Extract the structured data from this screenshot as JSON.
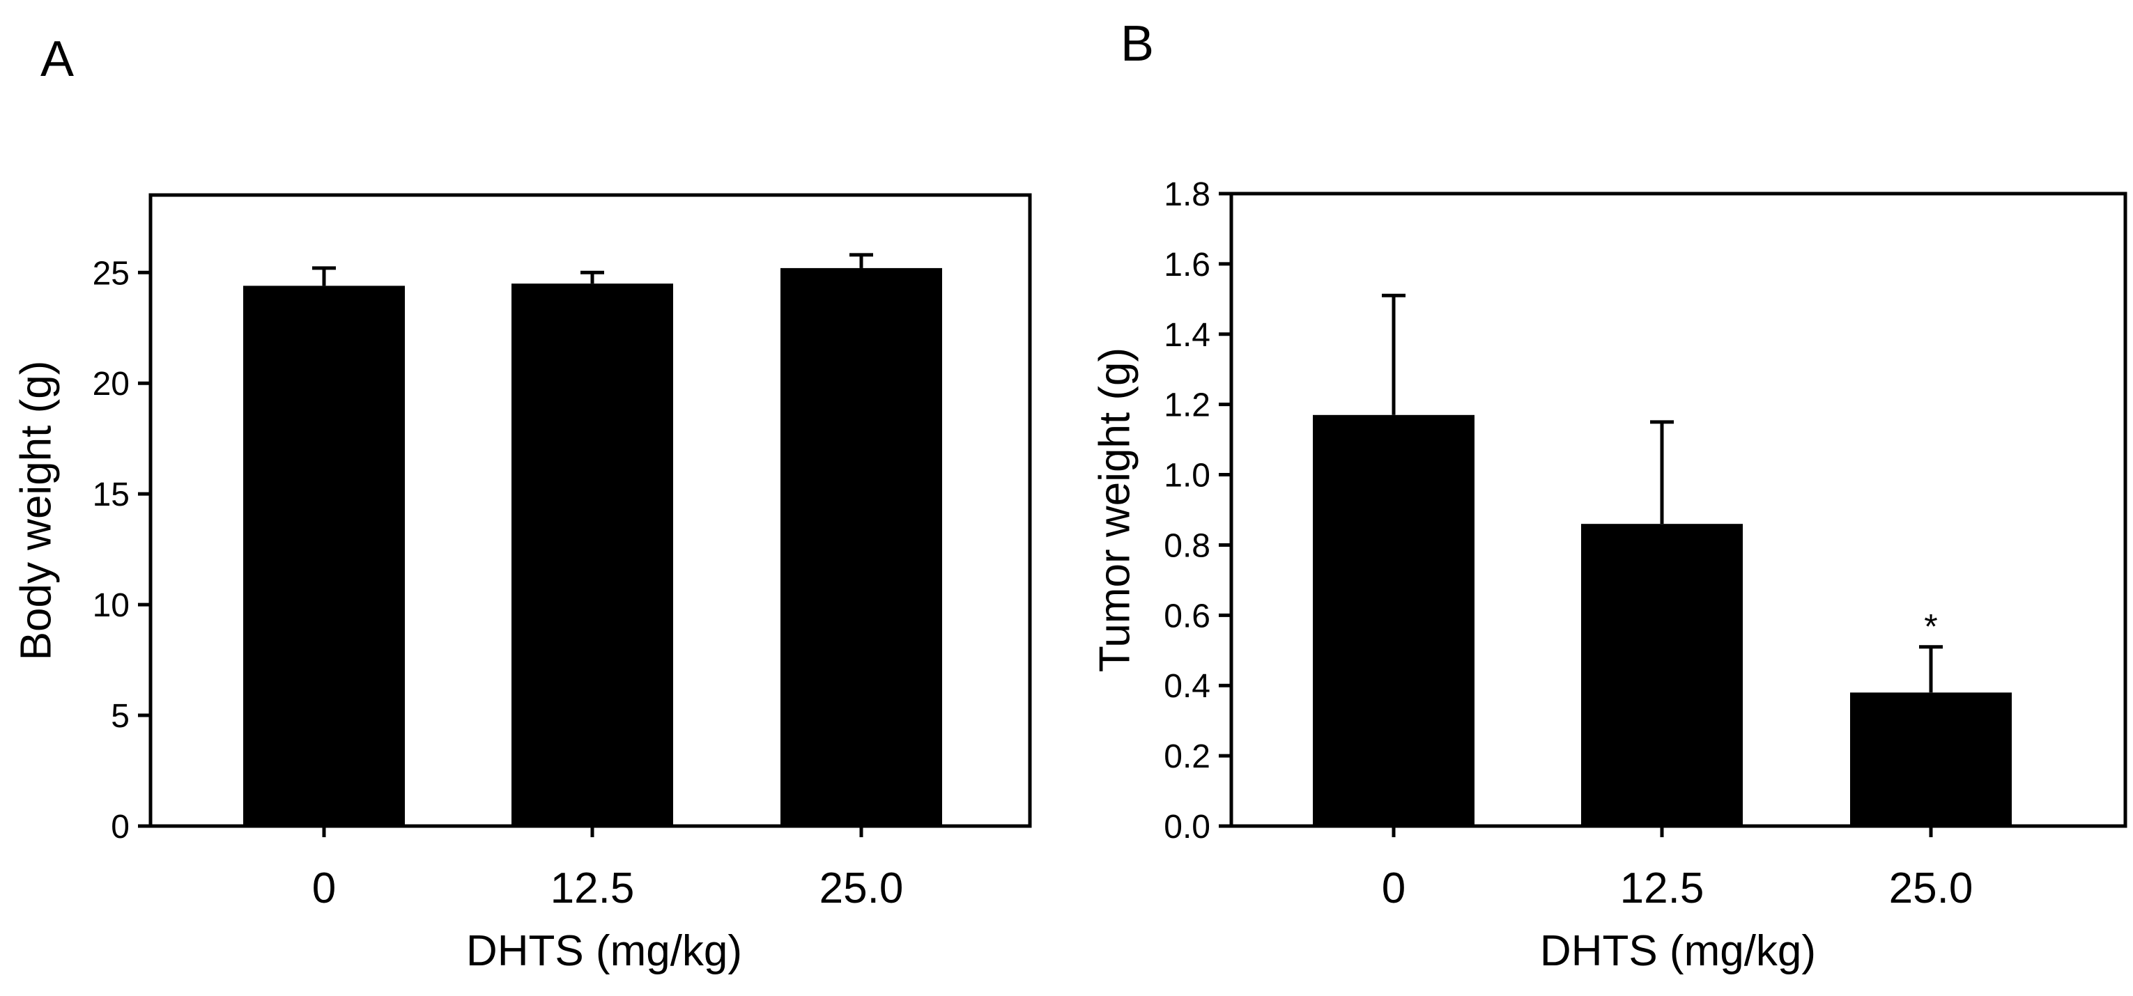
{
  "panels": {
    "a": {
      "label": "A"
    },
    "b": {
      "label": "B"
    }
  },
  "chart_data": [
    {
      "type": "bar",
      "panel": "A",
      "categories": [
        "0",
        "12.5",
        "25.0"
      ],
      "values": [
        24.4,
        24.5,
        25.2
      ],
      "error": [
        0.8,
        0.5,
        0.6
      ],
      "ylim": [
        0,
        28.5
      ],
      "yticks": [
        0,
        5,
        10,
        15,
        20,
        25
      ],
      "ytick_labels": [
        "0",
        "5",
        "10",
        "15",
        "20",
        "25"
      ],
      "xlabel": "DHTS (mg/kg)",
      "ylabel": "Body weight (g)",
      "annotations": [
        "",
        "",
        ""
      ],
      "bar_color": "#000000"
    },
    {
      "type": "bar",
      "panel": "B",
      "categories": [
        "0",
        "12.5",
        "25.0"
      ],
      "values": [
        1.17,
        0.86,
        0.38
      ],
      "error": [
        0.34,
        0.29,
        0.13
      ],
      "ylim": [
        0,
        1.8
      ],
      "yticks": [
        0,
        0.2,
        0.4,
        0.6,
        0.8,
        1.0,
        1.2,
        1.4,
        1.6,
        1.8
      ],
      "ytick_labels": [
        "0.0",
        "0.2",
        "0.4",
        "0.6",
        "0.8",
        "1.0",
        "1.2",
        "1.4",
        "1.6",
        "1.8"
      ],
      "xlabel": "DHTS (mg/kg)",
      "ylabel": "Tumor weight (g)",
      "annotations": [
        "",
        "",
        "*"
      ],
      "bar_color": "#000000"
    }
  ]
}
